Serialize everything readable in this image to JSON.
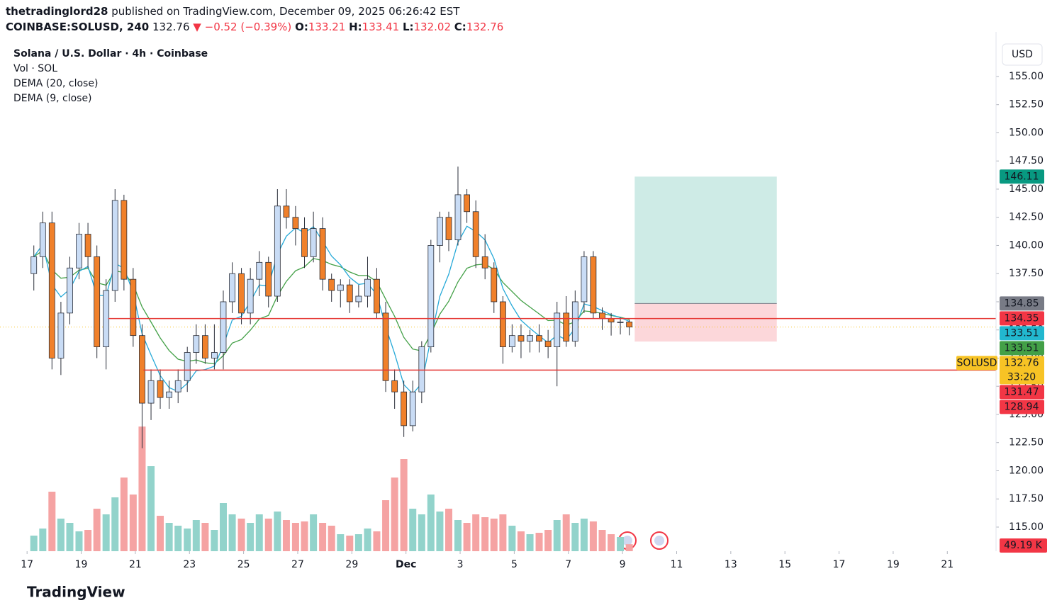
{
  "header": {
    "user": "thetradinglord28",
    "publisher_line": "published on TradingView.com, December 09, 2025 06:26:42 EST",
    "symbol": "COINBASE:SOLUSD, 240",
    "price": "132.76",
    "arrow": "▼",
    "change": "−0.52 (−0.39%)",
    "ohlc": [
      {
        "key": "O:",
        "value": "133.21"
      },
      {
        "key": "H:",
        "value": "133.41"
      },
      {
        "key": "L:",
        "value": "132.02"
      },
      {
        "key": "C:",
        "value": "132.76"
      }
    ],
    "brand": "TradingView"
  },
  "chart_data": {
    "type": "candlestick",
    "title": "Solana / U.S. Dollar · 4h · Coinbase",
    "indicators": [
      "Vol · SOL",
      "DEMA (20, close)",
      "DEMA (9, close)"
    ],
    "dema_periods": [
      20,
      9
    ],
    "dema_colors": [
      "#43a047",
      "#26a9d8"
    ],
    "up_color": "#c9dcf5",
    "down_color": "#f0802a",
    "vol_up_color": "#92d3cb",
    "vol_down_color": "#f5a3a3",
    "x": [
      17.25,
      17.58,
      17.92,
      18.25,
      18.58,
      18.92,
      19.25,
      19.58,
      19.92,
      20.25,
      20.58,
      20.92,
      21.25,
      21.58,
      21.92,
      22.25,
      22.58,
      22.92,
      23.25,
      23.58,
      23.92,
      24.25,
      24.58,
      24.92,
      25.25,
      25.58,
      25.92,
      26.25,
      26.58,
      26.92,
      27.25,
      27.58,
      27.92,
      28.25,
      28.58,
      28.92,
      29.25,
      29.58,
      29.92,
      30.25,
      30.58,
      30.92,
      31.25,
      31.58,
      31.92,
      32.25,
      32.58,
      32.92,
      33.25,
      33.58,
      33.92,
      34.25,
      34.58,
      34.92,
      35.25,
      35.58,
      35.92,
      36.25,
      36.58,
      36.92,
      37.25,
      37.58,
      37.92,
      38.25,
      38.58,
      38.92,
      39.25
    ],
    "open": [
      137.5,
      139,
      142,
      130,
      134,
      138,
      141,
      139,
      131,
      136,
      144,
      137,
      132,
      126,
      128,
      126.5,
      127,
      128,
      130.5,
      132,
      130,
      130.5,
      135,
      137.5,
      134,
      137,
      138.5,
      135.5,
      143.5,
      142.5,
      141.5,
      139,
      141.5,
      137,
      136,
      136.5,
      135,
      135.5,
      137,
      134,
      128,
      127,
      124,
      127,
      131,
      140,
      142.5,
      140.5,
      144.5,
      143,
      139,
      138,
      135,
      131,
      132,
      131.5,
      132,
      131.5,
      131,
      134,
      131.5,
      135,
      139,
      134,
      133.5,
      133.2,
      133.21
    ],
    "high": [
      140,
      143,
      143,
      135,
      139,
      142,
      142,
      140,
      137,
      145,
      144.5,
      138,
      133,
      129,
      129,
      128,
      129,
      131,
      133,
      133,
      133,
      136,
      138.5,
      138,
      138,
      139.5,
      139,
      145,
      145,
      143.5,
      142.5,
      143,
      142.5,
      137.5,
      137,
      137,
      136.5,
      139,
      138,
      135,
      129,
      128,
      128,
      131.5,
      140.5,
      143,
      143,
      147,
      145,
      144,
      141,
      138.5,
      135.5,
      133,
      133,
      132.5,
      133,
      132.5,
      135,
      135.5,
      136,
      139.5,
      139.5,
      134.5,
      134,
      133.6,
      133.41
    ],
    "low": [
      136,
      138,
      129,
      128.5,
      133,
      137,
      138,
      130,
      129,
      135,
      136,
      131,
      122,
      124.5,
      125.5,
      125.5,
      126,
      127,
      129.5,
      129.5,
      129,
      129,
      134,
      133,
      133,
      135.5,
      134.5,
      135,
      141.5,
      140,
      138,
      138.5,
      136,
      135,
      134.5,
      134,
      134.5,
      134.5,
      133.5,
      127,
      125.5,
      123,
      123.5,
      126,
      130.5,
      138.5,
      139.5,
      140,
      142,
      138,
      137,
      134,
      129.5,
      130.5,
      130,
      130.5,
      130.5,
      130,
      127.5,
      131,
      131,
      134,
      133.5,
      132.5,
      132,
      132.1,
      132.02
    ],
    "close": [
      139,
      142,
      130,
      134,
      138,
      141,
      139,
      131,
      136,
      144,
      137,
      132,
      126,
      128,
      126.5,
      127,
      128,
      130.5,
      132,
      130,
      130.5,
      135,
      137.5,
      134,
      137,
      138.5,
      135.5,
      143.5,
      142.5,
      141.5,
      139,
      141.5,
      137,
      136,
      136.5,
      135,
      135.5,
      137,
      134,
      128,
      127,
      124,
      127,
      131,
      140,
      142.5,
      140.5,
      144.5,
      143,
      139,
      138,
      135,
      131,
      132,
      131.5,
      132,
      131.5,
      131,
      134,
      131.5,
      135,
      139,
      134,
      133.5,
      133.2,
      133.21,
      132.76
    ],
    "volume": [
      110,
      160,
      420,
      230,
      200,
      140,
      150,
      300,
      260,
      380,
      520,
      400,
      880,
      600,
      250,
      200,
      180,
      160,
      220,
      200,
      150,
      340,
      260,
      230,
      200,
      260,
      230,
      280,
      220,
      200,
      210,
      260,
      200,
      180,
      120,
      110,
      120,
      160,
      140,
      360,
      520,
      650,
      300,
      260,
      400,
      280,
      300,
      220,
      200,
      260,
      240,
      230,
      260,
      180,
      140,
      120,
      130,
      150,
      220,
      260,
      200,
      230,
      210,
      150,
      120,
      100,
      49.19
    ],
    "last_volume_label": "49.19 K",
    "xlim": [
      16,
      52.8
    ],
    "xticks": [
      17,
      19,
      21,
      23,
      25,
      27,
      29,
      {
        "value": 31,
        "label": "Dec"
      },
      {
        "value": 33,
        "label": "3"
      },
      {
        "value": 35,
        "label": "5"
      },
      {
        "value": 37,
        "label": "7"
      },
      {
        "value": 39,
        "label": "9"
      },
      {
        "value": 41,
        "label": "11"
      },
      {
        "value": 43,
        "label": "13"
      },
      {
        "value": 45,
        "label": "15"
      },
      {
        "value": 47,
        "label": "17"
      },
      {
        "value": 49,
        "label": "19"
      },
      {
        "value": 51,
        "label": "21"
      }
    ],
    "ylim": [
      112.86,
      158.33
    ],
    "yticks": [
      {
        "value": 115,
        "label": "115.00"
      },
      {
        "value": 117.5,
        "label": "117.50"
      },
      {
        "value": 120,
        "label": "120.00"
      },
      {
        "value": 122.5,
        "label": "122.50"
      },
      {
        "value": 125,
        "label": "125.00"
      },
      {
        "value": 127.5,
        "label": "127.50"
      },
      {
        "value": 130,
        "label": "130.00"
      },
      {
        "value": 132.5,
        "label": "132.50"
      },
      {
        "value": 135,
        "label": "135.00"
      },
      {
        "value": 137.5,
        "label": "137.50"
      },
      {
        "value": 140,
        "label": "140.00"
      },
      {
        "value": 142.5,
        "label": "142.50"
      },
      {
        "value": 145,
        "label": "145.00"
      },
      {
        "value": 147.5,
        "label": "147.50"
      },
      {
        "value": 150,
        "label": "150.00"
      },
      {
        "value": 152.5,
        "label": "152.50"
      },
      {
        "value": 155,
        "label": "155.00"
      }
    ],
    "currency": "USD",
    "hlines": [
      {
        "value": 133.51,
        "from": 20
      },
      {
        "value": 128.94,
        "from": 21.3
      }
    ],
    "hline_color": "#e53935",
    "position": {
      "x": [
        39.45,
        44.7
      ],
      "target": 146.11,
      "entry": 134.85,
      "stop": 131.47
    },
    "price_labels": [
      146.11,
      134.85,
      134.35,
      133.51,
      133.51,
      132.76,
      131.47,
      128.94
    ],
    "price_label_colors": [
      "#089981",
      "#787b86",
      "#f23645",
      "#22b8cf",
      "#43a047",
      "#f7c325",
      "#f23645",
      "#f23645"
    ],
    "current_index": 5,
    "countdown": "33:20",
    "symbol_tag": "SOLUSD"
  }
}
